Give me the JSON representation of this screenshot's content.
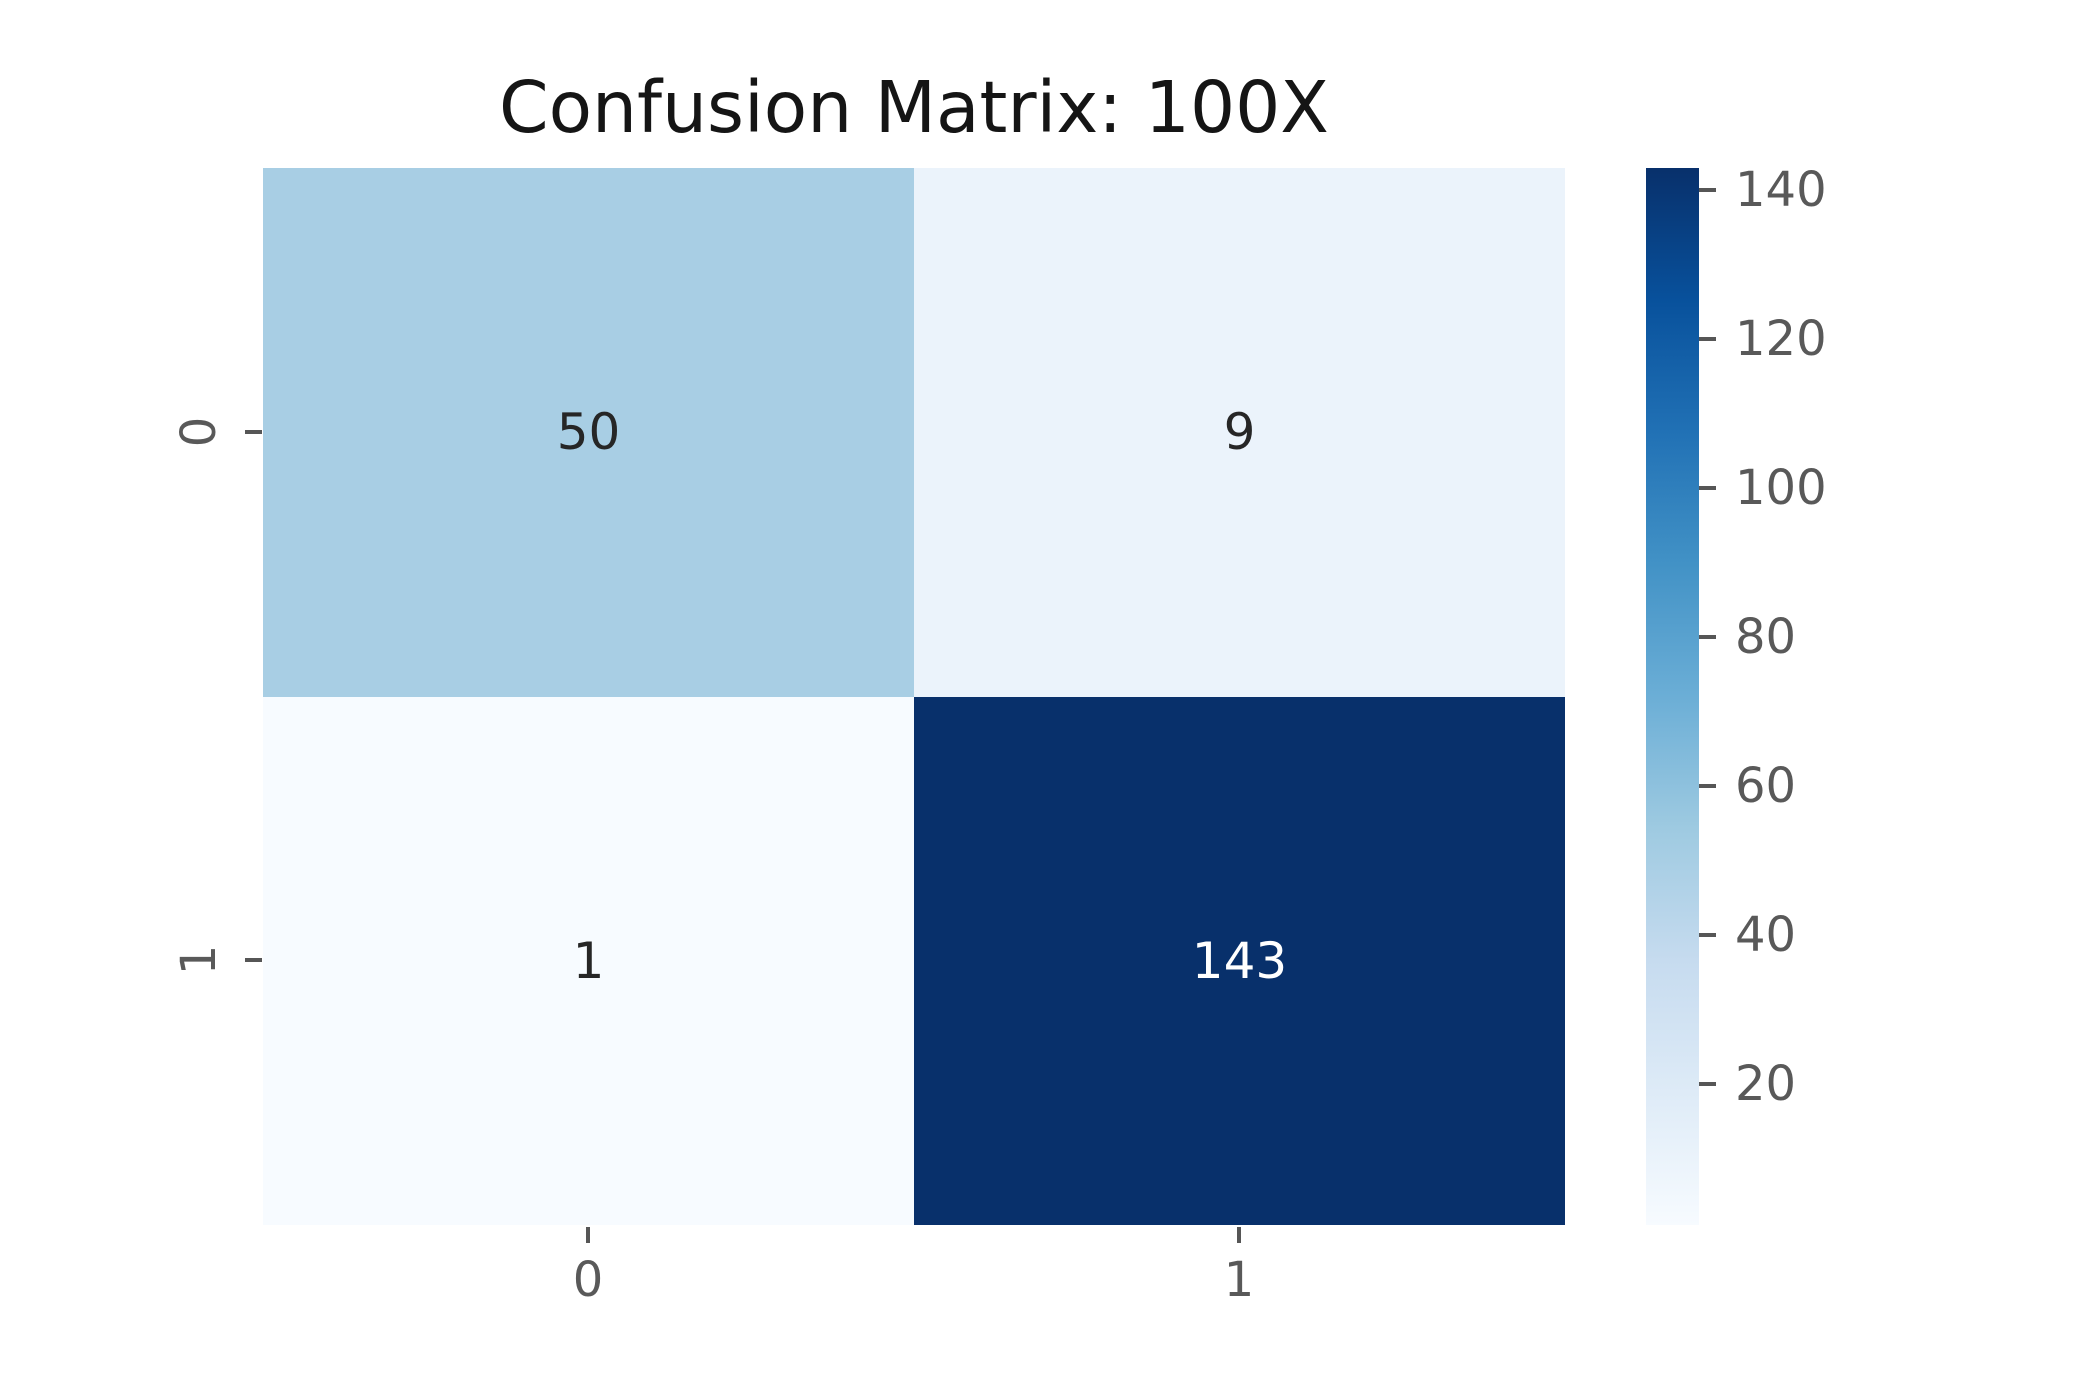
{
  "chart_data": {
    "type": "heatmap",
    "title": "Confusion Matrix: 100X",
    "xlabel": "",
    "ylabel": "",
    "x_tick_labels": [
      "0",
      "1"
    ],
    "y_tick_labels": [
      "0",
      "1"
    ],
    "matrix": [
      [
        50,
        9
      ],
      [
        1,
        143
      ]
    ],
    "vmin": 1,
    "vmax": 143,
    "colormap": "Blues",
    "cells": [
      {
        "row": 0,
        "col": 0,
        "value": "50",
        "bg": "#a8cee4",
        "fg": "#262626"
      },
      {
        "row": 0,
        "col": 1,
        "value": "9",
        "bg": "#ebf3fb",
        "fg": "#262626"
      },
      {
        "row": 1,
        "col": 0,
        "value": "1",
        "bg": "#f7fbff",
        "fg": "#262626"
      },
      {
        "row": 1,
        "col": 1,
        "value": "143",
        "bg": "#08306b",
        "fg": "#ffffff"
      }
    ],
    "colorbar": {
      "position": "right",
      "ticks": [
        20,
        40,
        60,
        80,
        100,
        120,
        140
      ],
      "gradient_stops": [
        "#f7fbff",
        "#deebf7",
        "#c6dbef",
        "#9ecae1",
        "#6baed6",
        "#4292c6",
        "#2171b5",
        "#08519c",
        "#08306b"
      ]
    },
    "layout": {
      "grid": false,
      "spines": false,
      "annotations": true
    }
  },
  "colors": {
    "background": "#ffffff",
    "title_text": "#151515",
    "tick_text": "#595959",
    "tick_mark": "#565656"
  }
}
